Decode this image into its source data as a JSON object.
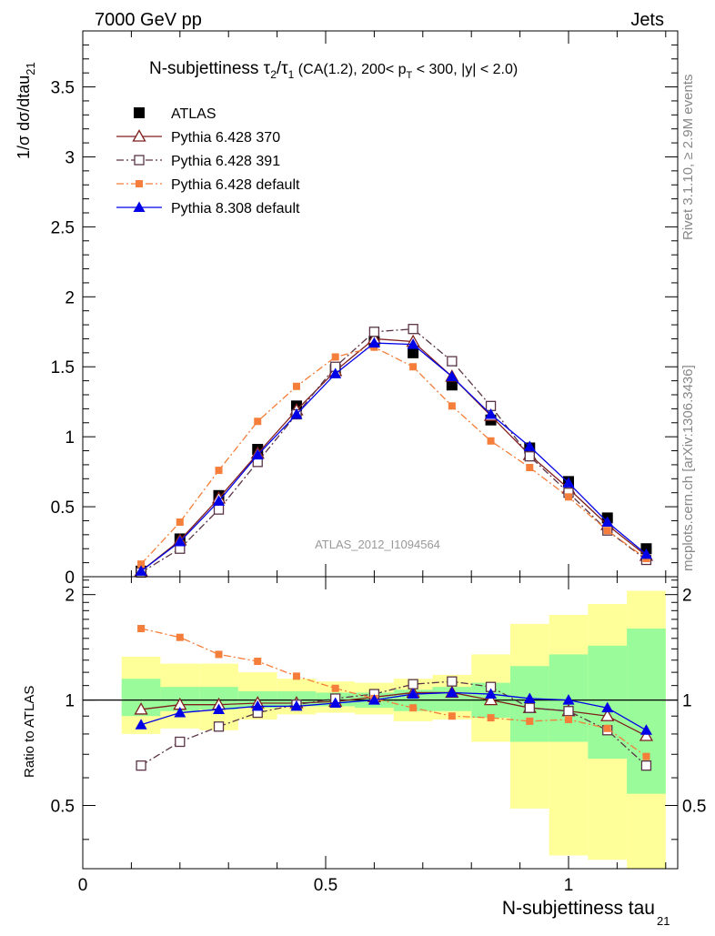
{
  "header": {
    "left": "7000 GeV pp",
    "right": "Jets",
    "side_top": "Rivet 3.1.10, ≥ 2.9M events",
    "side_bottom": "mcplots.cern.ch [arXiv:1306.3436]",
    "analysis_id": "ATLAS_2012_I1094564"
  },
  "title_parts": {
    "prefix": "N-subjettiness ",
    "tau": "τ",
    "sub2": "2",
    "slash": "/",
    "sub1": "1",
    "suffix_a": " (CA(1.2), 200< p",
    "subT": "T",
    "suffix_b": " < 300, |y| < 2.0)"
  },
  "axes_text": {
    "ylabel_main": "1/σ dσ/dtau",
    "ylabel_main_sub": "21",
    "ylabel_ratio": "Ratio to ATLAS",
    "xlabel": "N-subjettiness tau",
    "xlabel_sub": "21"
  },
  "colors": {
    "atlas": "#000000",
    "p370": "#7f1f1f",
    "p391": "#5a3446",
    "p6def": "#f47e3a",
    "p8def": "#0000e6",
    "band_green": "#99fb99",
    "band_yellow": "#ffff99"
  },
  "chart_data": [
    {
      "type": "line",
      "xlim": [
        0,
        1.2
      ],
      "ylim": [
        0,
        3.9
      ],
      "x_ticks": [
        0,
        0.5,
        1
      ],
      "x_tick_labels": [
        "0",
        "0.5",
        "1"
      ],
      "y_ticks": [
        0,
        0.5,
        1,
        1.5,
        2,
        2.5,
        3,
        3.5
      ],
      "y_tick_labels": [
        "0",
        "0.5",
        "1",
        "1.5",
        "2",
        "2.5",
        "3",
        "3.5"
      ],
      "legend_position": "top-left",
      "x": [
        0.12,
        0.2,
        0.28,
        0.36,
        0.44,
        0.52,
        0.6,
        0.68,
        0.76,
        0.84,
        0.92,
        1.0,
        1.08,
        1.16
      ],
      "series": [
        {
          "name": "ATLAS",
          "marker": "square",
          "values": [
            0.04,
            0.27,
            0.58,
            0.91,
            1.22,
            1.48,
            1.68,
            1.6,
            1.37,
            1.12,
            0.92,
            0.68,
            0.42,
            0.2
          ]
        },
        {
          "name": "Pythia 6.428 370",
          "marker": "open-triangle",
          "values": [
            0.04,
            0.26,
            0.56,
            0.88,
            1.19,
            1.47,
            1.7,
            1.68,
            1.43,
            1.15,
            0.87,
            0.63,
            0.37,
            0.15
          ]
        },
        {
          "name": "Pythia 6.428 391",
          "marker": "open-square",
          "values": [
            0.03,
            0.2,
            0.48,
            0.82,
            1.16,
            1.5,
            1.75,
            1.77,
            1.54,
            1.22,
            0.86,
            0.6,
            0.33,
            0.12
          ]
        },
        {
          "name": "Pythia 6.428 default",
          "marker": "small-square",
          "values": [
            0.09,
            0.39,
            0.76,
            1.11,
            1.36,
            1.57,
            1.64,
            1.5,
            1.22,
            0.97,
            0.78,
            0.57,
            0.33,
            0.13
          ]
        },
        {
          "name": "Pythia 8.308 default",
          "marker": "triangle",
          "values": [
            0.04,
            0.25,
            0.54,
            0.87,
            1.16,
            1.45,
            1.67,
            1.66,
            1.43,
            1.16,
            0.93,
            0.67,
            0.39,
            0.16
          ]
        }
      ]
    },
    {
      "type": "line",
      "xlim": [
        0,
        1.2
      ],
      "ylim": [
        0.33,
        2.25
      ],
      "x_ticks": [
        0,
        0.5,
        1
      ],
      "x_tick_labels": [
        "0",
        "0.5",
        "1"
      ],
      "y_ticks": [
        0.5,
        1,
        2
      ],
      "y_tick_labels": [
        "0.5",
        "1",
        "2"
      ],
      "reference_line": 1,
      "bins": [
        0.08,
        0.16,
        0.24,
        0.32,
        0.4,
        0.48,
        0.56,
        0.64,
        0.72,
        0.8,
        0.88,
        0.96,
        1.04,
        1.12,
        1.2
      ],
      "band_green": [
        [
          0.9,
          1.15
        ],
        [
          0.93,
          1.09
        ],
        [
          0.94,
          1.09
        ],
        [
          0.95,
          1.06
        ],
        [
          0.96,
          1.06
        ],
        [
          0.96,
          1.05
        ],
        [
          0.95,
          1.05
        ],
        [
          0.93,
          1.07
        ],
        [
          0.93,
          1.09
        ],
        [
          0.89,
          1.12
        ],
        [
          0.76,
          1.25
        ],
        [
          0.76,
          1.35
        ],
        [
          0.68,
          1.43
        ],
        [
          0.54,
          1.6
        ]
      ],
      "band_yellow": [
        [
          0.8,
          1.33
        ],
        [
          0.83,
          1.27
        ],
        [
          0.82,
          1.27
        ],
        [
          0.88,
          1.2
        ],
        [
          0.91,
          1.15
        ],
        [
          0.92,
          1.13
        ],
        [
          0.91,
          1.12
        ],
        [
          0.87,
          1.15
        ],
        [
          0.88,
          1.18
        ],
        [
          0.76,
          1.35
        ],
        [
          0.49,
          1.65
        ],
        [
          0.36,
          1.75
        ],
        [
          0.35,
          1.88
        ],
        [
          0.33,
          2.05
        ]
      ],
      "x": [
        0.12,
        0.2,
        0.28,
        0.36,
        0.44,
        0.52,
        0.6,
        0.68,
        0.76,
        0.84,
        0.92,
        1.0,
        1.08,
        1.16
      ],
      "series": [
        {
          "name": "Pythia 6.428 370",
          "marker": "open-triangle",
          "values": [
            0.94,
            0.97,
            0.97,
            0.98,
            0.98,
            0.99,
            1.02,
            1.05,
            1.05,
            1.0,
            0.95,
            0.93,
            0.9,
            0.79
          ]
        },
        {
          "name": "Pythia 6.428 391",
          "marker": "open-square",
          "values": [
            0.65,
            0.76,
            0.84,
            0.92,
            0.97,
            1.01,
            1.04,
            1.11,
            1.13,
            1.09,
            0.95,
            0.93,
            0.82,
            0.65
          ]
        },
        {
          "name": "Pythia 6.428 default",
          "marker": "small-square",
          "values": [
            1.6,
            1.51,
            1.35,
            1.29,
            1.17,
            1.08,
            1.01,
            0.95,
            0.9,
            0.89,
            0.87,
            0.88,
            0.83,
            0.69
          ]
        },
        {
          "name": "Pythia 8.308 default",
          "marker": "triangle",
          "values": [
            0.85,
            0.92,
            0.94,
            0.96,
            0.96,
            0.98,
            1.0,
            1.04,
            1.05,
            1.04,
            1.01,
            1.0,
            0.95,
            0.82
          ]
        }
      ]
    }
  ]
}
